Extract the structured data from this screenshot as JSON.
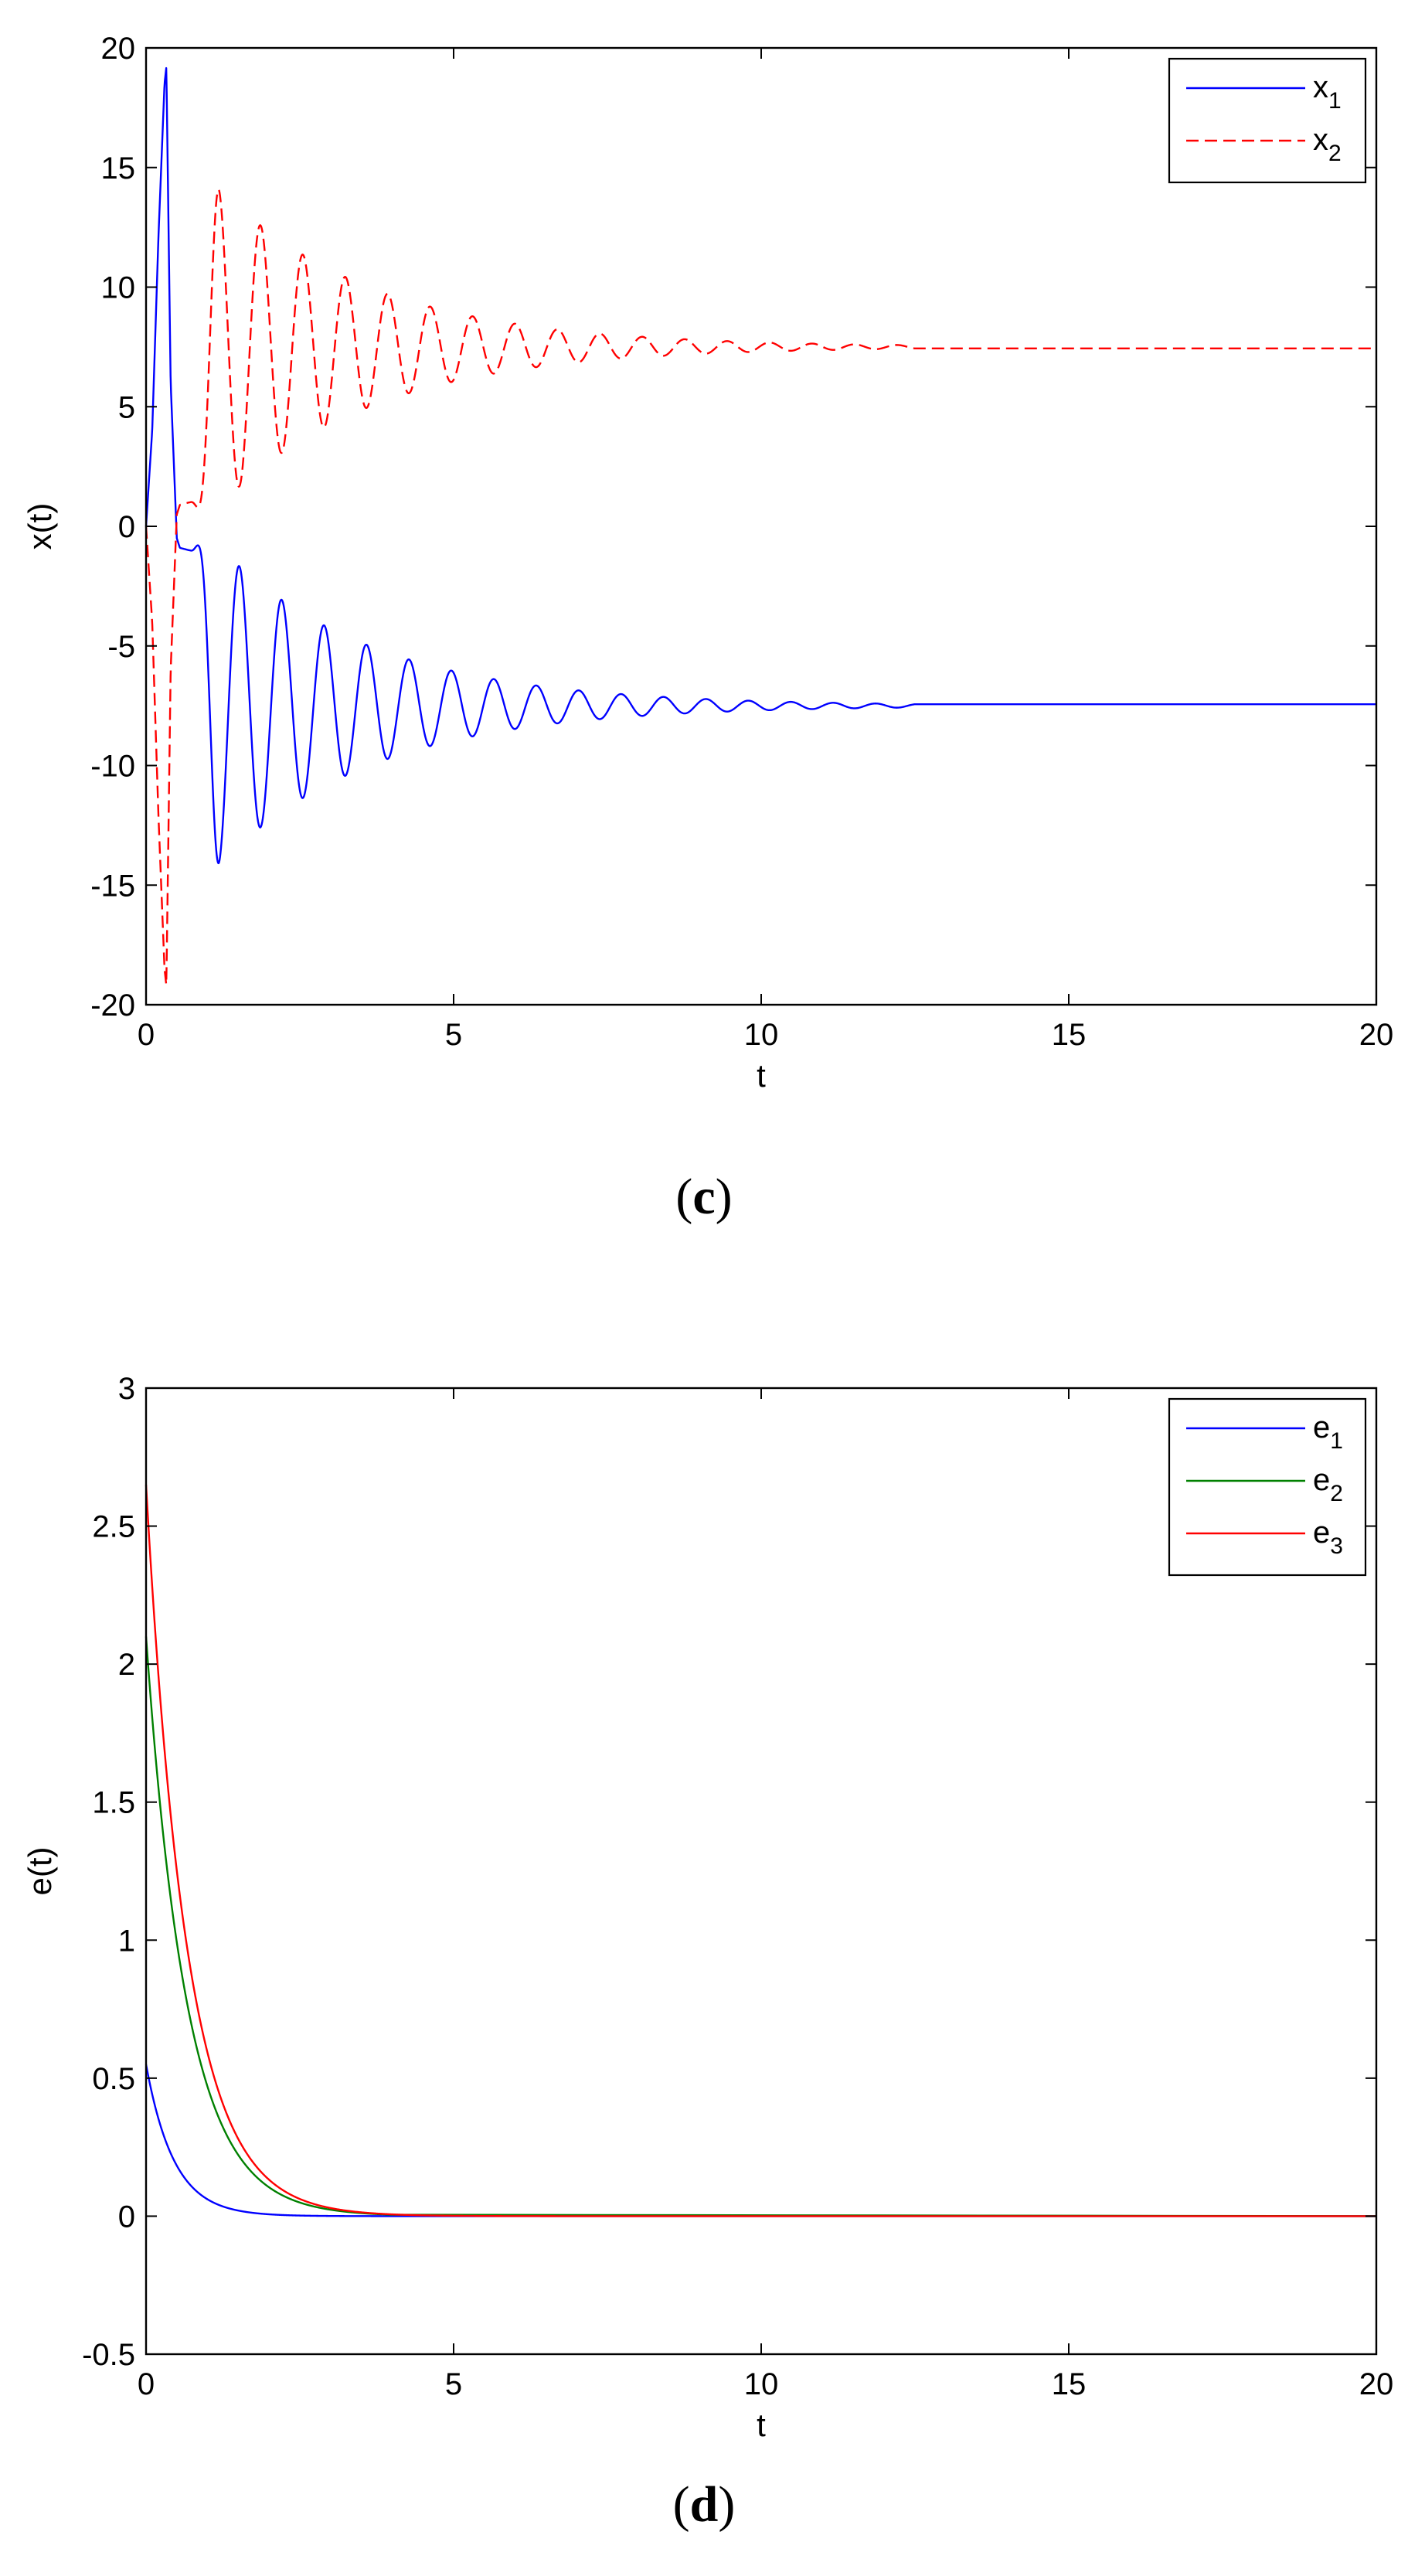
{
  "figure": {
    "panel_c_label": {
      "open": "(",
      "letter": "c",
      "close": ")"
    },
    "panel_d_label": {
      "open": "(",
      "letter": "d",
      "close": ")"
    }
  },
  "chart_data": [
    {
      "type": "line",
      "panel": "c",
      "xlabel": "t",
      "ylabel": "x(t)",
      "xlim": [
        0,
        20
      ],
      "ylim": [
        -20,
        20
      ],
      "xticks": [
        0,
        5,
        10,
        15,
        20
      ],
      "yticks": [
        -20,
        -15,
        -10,
        -5,
        0,
        5,
        10,
        15,
        20
      ],
      "grid": false,
      "legend_position": "top-right",
      "series": [
        {
          "name": "x",
          "name_sub": "1",
          "color": "#0000ff",
          "dash": "solid",
          "model": "oscillation",
          "x": [
            0,
            0.1,
            0.2,
            0.3,
            0.33,
            0.4,
            0.5,
            0.55,
            0.7
          ],
          "y": [
            0,
            4,
            12,
            18.5,
            19.2,
            6,
            -0.5,
            -0.9,
            -1.0
          ],
          "osc_start": 0.7,
          "t_transition": 1.2,
          "final": -7.5,
          "amplitude": 6.9,
          "period": 0.69,
          "decay": 0.4,
          "first_peak": 1.17,
          "first_peak_value": -14.2,
          "end_t": 12.5
        },
        {
          "name": "x",
          "name_sub": "2",
          "color": "#ff0000",
          "dash": "dashed",
          "model": "oscillation",
          "x": [
            0,
            0.1,
            0.2,
            0.3,
            0.33,
            0.4,
            0.5,
            0.55,
            0.7
          ],
          "y": [
            0,
            -4,
            -12,
            -18.5,
            -19.2,
            -6,
            0.5,
            0.9,
            1.0
          ],
          "osc_start": 0.7,
          "t_transition": 1.2,
          "final": 7.5,
          "amplitude": 6.9,
          "period": 0.69,
          "decay": 0.4,
          "first_peak": 1.17,
          "first_peak_value": 14.2,
          "end_t": 12.5
        }
      ]
    },
    {
      "type": "line",
      "panel": "d",
      "xlabel": "t",
      "ylabel": "e(t)",
      "xlim": [
        0,
        20
      ],
      "ylim": [
        -0.5,
        3
      ],
      "xticks": [
        0,
        5,
        10,
        15,
        20
      ],
      "yticks": [
        -0.5,
        0,
        0.5,
        1,
        1.5,
        2,
        2.5,
        3
      ],
      "grid": false,
      "legend_position": "top-right",
      "series": [
        {
          "name": "e",
          "name_sub": "1",
          "color": "#0000ff",
          "model": "exponential",
          "initial": 0.55,
          "rate": 2.2,
          "end_t": 4
        },
        {
          "name": "e",
          "name_sub": "2",
          "color": "#008000",
          "model": "exponential",
          "initial": 2.1,
          "rate": 1.5,
          "end_t": 4
        },
        {
          "name": "e",
          "name_sub": "3",
          "color": "#ff0000",
          "model": "exponential",
          "initial": 2.65,
          "rate": 1.5,
          "end_t": 20
        }
      ]
    }
  ]
}
